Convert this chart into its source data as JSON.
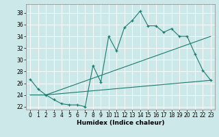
{
  "xlabel": "Humidex (Indice chaleur)",
  "bg_color": "#cce8e8",
  "grid_color": "#ffffff",
  "line_color": "#1a7a6e",
  "xlim": [
    -0.5,
    23.5
  ],
  "ylim": [
    21.5,
    39.5
  ],
  "xticks": [
    0,
    1,
    2,
    3,
    4,
    5,
    6,
    7,
    8,
    9,
    10,
    11,
    12,
    13,
    14,
    15,
    16,
    17,
    18,
    19,
    20,
    21,
    22,
    23
  ],
  "yticks": [
    22,
    24,
    26,
    28,
    30,
    32,
    34,
    36,
    38
  ],
  "series1_x": [
    0,
    1,
    2,
    3,
    4,
    5,
    6,
    7,
    8,
    9,
    10,
    11,
    12,
    13,
    14,
    15,
    16,
    17,
    18,
    19,
    20,
    21,
    22,
    23
  ],
  "series1_y": [
    26.7,
    25.0,
    24.0,
    23.2,
    22.5,
    22.3,
    22.3,
    22.0,
    29.0,
    26.2,
    34.0,
    31.5,
    35.5,
    36.7,
    38.3,
    35.8,
    35.8,
    34.7,
    35.3,
    34.0,
    34.0,
    31.0,
    28.2,
    26.5
  ],
  "series2_x": [
    0,
    2,
    23
  ],
  "series2_y": [
    24.0,
    24.0,
    34.0
  ],
  "series3_x": [
    0,
    2,
    23
  ],
  "series3_y": [
    24.0,
    24.0,
    26.5
  ]
}
